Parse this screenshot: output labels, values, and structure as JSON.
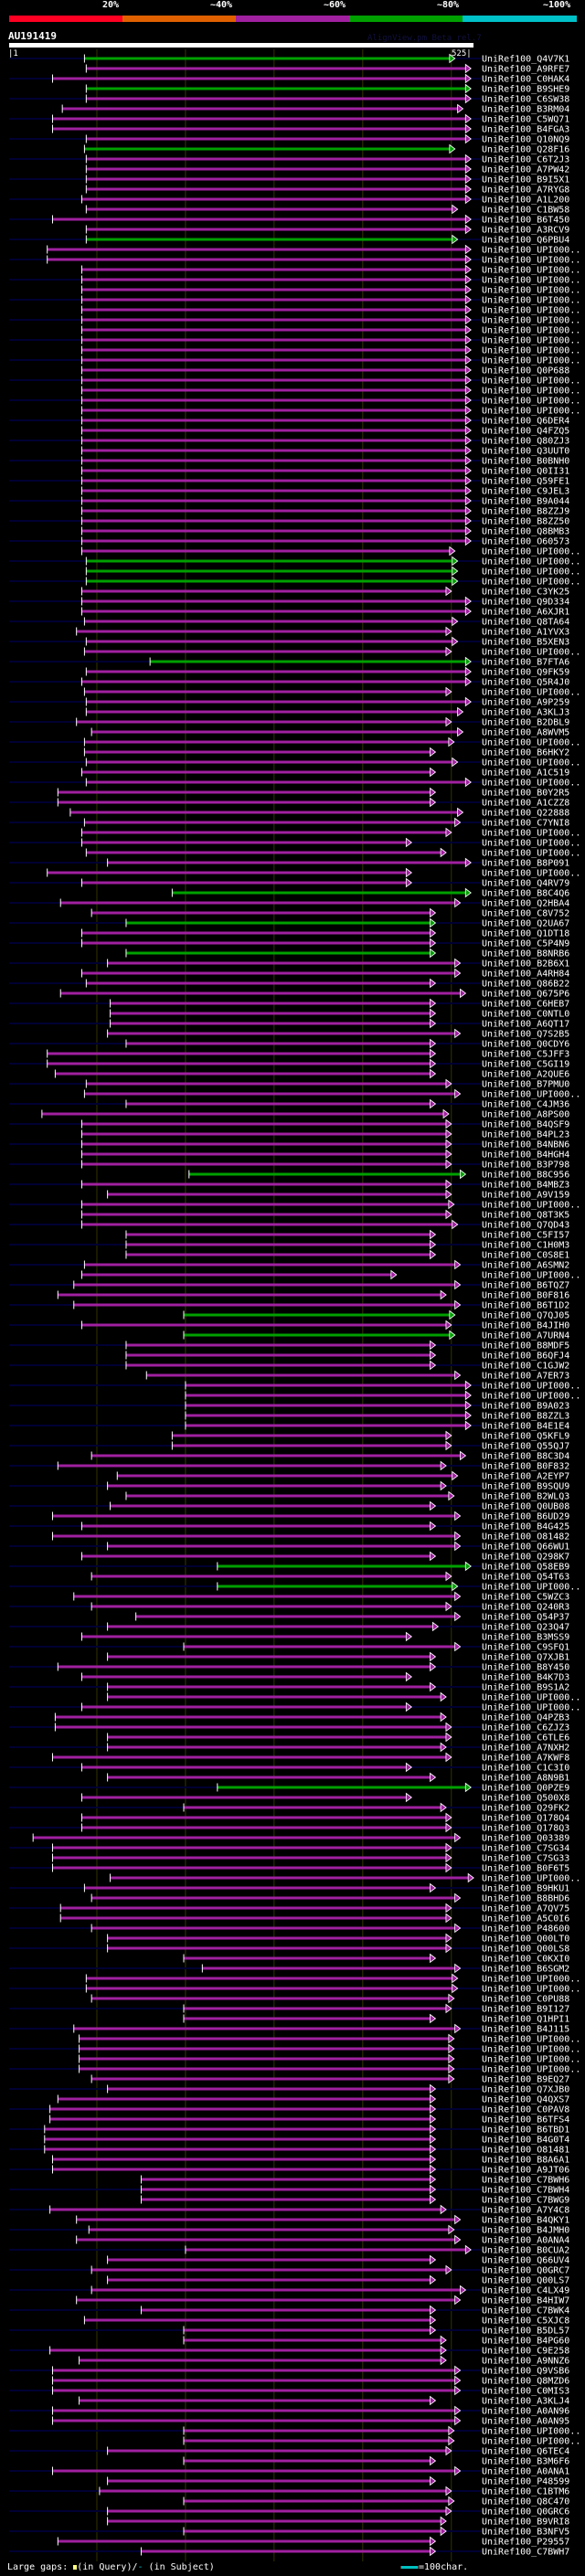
{
  "legend": {
    "labels": [
      "20%",
      "~40%",
      "~60%",
      "~80%",
      "~100%"
    ],
    "colors": [
      "#ff0022",
      "#e06000",
      "#a020a0",
      "#00a000",
      "#00c0c8"
    ]
  },
  "query": {
    "name": "AU191419",
    "tool": "AlignView.pm Beta rel.7",
    "start_label": "|1",
    "end_label": "525|",
    "length": 525
  },
  "colors": {
    "m": "#a020a0",
    "g": "#00a000",
    "stripe": "#000033",
    "grid": "#333300"
  },
  "grid_positions": [
    100,
    200,
    300,
    400,
    500
  ],
  "footer": {
    "gaps_label": "Large gaps:",
    "query_gap": "(in Query)/",
    "subject_gap_mark": "-",
    "subject_gap": " (in Subject)",
    "scale_label": "=100char."
  },
  "hits": [
    [
      "UniRef100_Q4V7K1",
      86,
      498,
      "g"
    ],
    [
      "UniRef100_A9RFE7",
      88,
      516,
      "m"
    ],
    [
      "UniRef100_C0HAK4",
      50,
      516,
      "m"
    ],
    [
      "UniRef100_B9SHE9",
      88,
      516,
      "g"
    ],
    [
      "UniRef100_C6SW38",
      88,
      516,
      "m"
    ],
    [
      "UniRef100_B3RM04",
      61,
      507,
      "m"
    ],
    [
      "UniRef100_C5WQ71",
      50,
      516,
      "m"
    ],
    [
      "UniRef100_B4FGA3",
      50,
      516,
      "m"
    ],
    [
      "UniRef100_Q10NQ9",
      88,
      516,
      "m"
    ],
    [
      "UniRef100_Q28F16",
      86,
      498,
      "g"
    ],
    [
      "UniRef100_C6T2J3",
      88,
      516,
      "m"
    ],
    [
      "UniRef100_A7PW42",
      88,
      516,
      "m"
    ],
    [
      "UniRef100_B9I5X1",
      88,
      516,
      "m"
    ],
    [
      "UniRef100_A7RYG8",
      88,
      516,
      "m"
    ],
    [
      "UniRef100_A1L200",
      83,
      516,
      "m"
    ],
    [
      "UniRef100_C1BW58",
      88,
      501,
      "m"
    ],
    [
      "UniRef100_B6T450",
      50,
      516,
      "m"
    ],
    [
      "UniRef100_A3RCV9",
      88,
      516,
      "m"
    ],
    [
      "UniRef100_Q6PBU4",
      88,
      501,
      "g"
    ],
    [
      "UniRef100_UPI000..",
      44,
      516,
      "m"
    ],
    [
      "UniRef100_UPI000..",
      44,
      516,
      "m"
    ],
    [
      "UniRef100_UPI000..",
      83,
      516,
      "m"
    ],
    [
      "UniRef100_UPI000..",
      83,
      516,
      "m"
    ],
    [
      "UniRef100_UPI000..",
      83,
      516,
      "m"
    ],
    [
      "UniRef100_UPI000..",
      83,
      516,
      "m"
    ],
    [
      "UniRef100_UPI000..",
      83,
      516,
      "m"
    ],
    [
      "UniRef100_UPI000..",
      83,
      516,
      "m"
    ],
    [
      "UniRef100_UPI000..",
      83,
      516,
      "m"
    ],
    [
      "UniRef100_UPI000..",
      83,
      516,
      "m"
    ],
    [
      "UniRef100_UPI000..",
      83,
      516,
      "m"
    ],
    [
      "UniRef100_UPI000..",
      83,
      516,
      "m"
    ],
    [
      "UniRef100_Q0P688",
      83,
      516,
      "m"
    ],
    [
      "UniRef100_UPI000..",
      83,
      516,
      "m"
    ],
    [
      "UniRef100_UPI000..",
      83,
      516,
      "m"
    ],
    [
      "UniRef100_UPI000..",
      83,
      516,
      "m"
    ],
    [
      "UniRef100_UPI000..",
      83,
      516,
      "m"
    ],
    [
      "UniRef100_Q6DER4",
      83,
      516,
      "m"
    ],
    [
      "UniRef100_Q4FZQ5",
      83,
      516,
      "m"
    ],
    [
      "UniRef100_Q80ZJ3",
      83,
      516,
      "m"
    ],
    [
      "UniRef100_Q3UUT0",
      83,
      516,
      "m"
    ],
    [
      "UniRef100_B0BNH0",
      83,
      516,
      "m"
    ],
    [
      "UniRef100_Q0II31",
      83,
      516,
      "m"
    ],
    [
      "UniRef100_Q59FE1",
      83,
      516,
      "m"
    ],
    [
      "UniRef100_C9JEL3",
      83,
      516,
      "m"
    ],
    [
      "UniRef100_B9A044",
      83,
      516,
      "m"
    ],
    [
      "UniRef100_B8ZZJ9",
      83,
      516,
      "m"
    ],
    [
      "UniRef100_B8ZZ50",
      83,
      516,
      "m"
    ],
    [
      "UniRef100_Q8BMB3",
      83,
      516,
      "m"
    ],
    [
      "UniRef100_O60573",
      83,
      516,
      "m"
    ],
    [
      "UniRef100_UPI000..",
      83,
      498,
      "m"
    ],
    [
      "UniRef100_UPI000..",
      88,
      501,
      "g"
    ],
    [
      "UniRef100_UPI000..",
      88,
      501,
      "g"
    ],
    [
      "UniRef100_UPI000..",
      88,
      501,
      "g"
    ],
    [
      "UniRef100_C3YK25",
      83,
      494,
      "m"
    ],
    [
      "UniRef100_Q9D334",
      83,
      516,
      "m"
    ],
    [
      "UniRef100_A6XJR1",
      83,
      516,
      "m"
    ],
    [
      "UniRef100_Q8TA64",
      86,
      501,
      "m"
    ],
    [
      "UniRef100_A1YVX3",
      77,
      494,
      "m"
    ],
    [
      "UniRef100_B5XEN3",
      88,
      501,
      "m"
    ],
    [
      "UniRef100_UPI000..",
      86,
      494,
      "m"
    ],
    [
      "UniRef100_B7FTA6",
      160,
      516,
      "g"
    ],
    [
      "UniRef100_Q9FK59",
      88,
      516,
      "m"
    ],
    [
      "UniRef100_Q5R4J0",
      83,
      516,
      "m"
    ],
    [
      "UniRef100_UPI000..",
      86,
      494,
      "m"
    ],
    [
      "UniRef100_A9P259",
      88,
      516,
      "m"
    ],
    [
      "UniRef100_A3KLJ3",
      88,
      507,
      "m"
    ],
    [
      "UniRef100_B2DBL9",
      77,
      494,
      "m"
    ],
    [
      "UniRef100_A8WVM5",
      94,
      507,
      "m"
    ],
    [
      "UniRef100_UPI000..",
      86,
      497,
      "m"
    ],
    [
      "UniRef100_B6HKY2",
      86,
      476,
      "m"
    ],
    [
      "UniRef100_UPI000..",
      88,
      501,
      "m"
    ],
    [
      "UniRef100_A1C519",
      83,
      476,
      "m"
    ],
    [
      "UniRef100_UPI000..",
      88,
      516,
      "m"
    ],
    [
      "UniRef100_B0Y2R5",
      56,
      476,
      "m"
    ],
    [
      "UniRef100_A1CZZ8",
      56,
      476,
      "m"
    ],
    [
      "UniRef100_Q22888",
      70,
      507,
      "m"
    ],
    [
      "UniRef100_C7YNI8",
      86,
      504,
      "m"
    ],
    [
      "UniRef100_UPI000..",
      83,
      494,
      "m"
    ],
    [
      "UniRef100_UPI000..",
      83,
      449,
      "m"
    ],
    [
      "UniRef100_UPI000..",
      88,
      488,
      "m"
    ],
    [
      "UniRef100_B8P091",
      112,
      516,
      "m"
    ],
    [
      "UniRef100_UPI000..",
      44,
      449,
      "m"
    ],
    [
      "UniRef100_Q4RV79",
      83,
      449,
      "m"
    ],
    [
      "UniRef100_B8C4Q6",
      185,
      516,
      "g"
    ],
    [
      "UniRef100_Q2HBA4",
      59,
      504,
      "m"
    ],
    [
      "UniRef100_C8V752",
      94,
      476,
      "m"
    ],
    [
      "UniRef100_Q2UA67",
      133,
      476,
      "g"
    ],
    [
      "UniRef100_Q1DT18",
      83,
      476,
      "m"
    ],
    [
      "UniRef100_C5P4N9",
      83,
      476,
      "m"
    ],
    [
      "UniRef100_B8NRB6",
      133,
      476,
      "g"
    ],
    [
      "UniRef100_B2B6X1",
      112,
      504,
      "m"
    ],
    [
      "UniRef100_A4RH84",
      83,
      504,
      "m"
    ],
    [
      "UniRef100_Q86B22",
      88,
      476,
      "m"
    ],
    [
      "UniRef100_Q675P6",
      59,
      510,
      "m"
    ],
    [
      "UniRef100_C6HEB7",
      115,
      476,
      "m"
    ],
    [
      "UniRef100_C0NTL0",
      115,
      476,
      "m"
    ],
    [
      "UniRef100_A6QT17",
      115,
      476,
      "m"
    ],
    [
      "UniRef100_Q7S2B5",
      112,
      504,
      "m"
    ],
    [
      "UniRef100_Q0CDY6",
      133,
      476,
      "m"
    ],
    [
      "UniRef100_C5JFF3",
      44,
      476,
      "m"
    ],
    [
      "UniRef100_C5GI19",
      44,
      476,
      "m"
    ],
    [
      "UniRef100_A2QUE6",
      53,
      476,
      "m"
    ],
    [
      "UniRef100_B7PMU0",
      88,
      494,
      "m"
    ],
    [
      "UniRef100_UPI000..",
      86,
      504,
      "m"
    ],
    [
      "UniRef100_C4JM36",
      133,
      476,
      "m"
    ],
    [
      "UniRef100_A8PS00",
      38,
      491,
      "m"
    ],
    [
      "UniRef100_B4QSF9",
      83,
      494,
      "m"
    ],
    [
      "UniRef100_B4PL23",
      83,
      494,
      "m"
    ],
    [
      "UniRef100_B4NBN6",
      83,
      494,
      "m"
    ],
    [
      "UniRef100_B4HGH4",
      83,
      494,
      "m"
    ],
    [
      "UniRef100_B3P798",
      83,
      494,
      "m"
    ],
    [
      "UniRef100_B8C956",
      204,
      510,
      "g"
    ],
    [
      "UniRef100_B4MBZ3",
      83,
      494,
      "m"
    ],
    [
      "UniRef100_A9V159",
      112,
      494,
      "m"
    ],
    [
      "UniRef100_UPI000..",
      83,
      497,
      "m"
    ],
    [
      "UniRef100_Q8T3K5",
      83,
      494,
      "m"
    ],
    [
      "UniRef100_Q7QD43",
      83,
      501,
      "m"
    ],
    [
      "UniRef100_C5FI57",
      133,
      476,
      "m"
    ],
    [
      "UniRef100_C1H0M3",
      133,
      476,
      "m"
    ],
    [
      "UniRef100_C0S8E1",
      133,
      476,
      "m"
    ],
    [
      "UniRef100_A6SMN2",
      86,
      504,
      "m"
    ],
    [
      "UniRef100_UPI000..",
      83,
      432,
      "m"
    ],
    [
      "UniRef100_B6TQZ7",
      74,
      504,
      "m"
    ],
    [
      "UniRef100_B0F816",
      56,
      488,
      "m"
    ],
    [
      "UniRef100_B6T1D2",
      74,
      504,
      "m"
    ],
    [
      "UniRef100_Q7QJ05",
      198,
      498,
      "g"
    ],
    [
      "UniRef100_B4JIH0",
      83,
      494,
      "m"
    ],
    [
      "UniRef100_A7URN4",
      198,
      498,
      "g"
    ],
    [
      "UniRef100_B8MDF5",
      133,
      476,
      "m"
    ],
    [
      "UniRef100_B6QFJ4",
      133,
      476,
      "m"
    ],
    [
      "UniRef100_C1GJW2",
      133,
      476,
      "m"
    ],
    [
      "UniRef100_A7ER73",
      156,
      504,
      "m"
    ],
    [
      "UniRef100_UPI000..",
      200,
      516,
      "m"
    ],
    [
      "UniRef100_UPI000..",
      200,
      516,
      "m"
    ],
    [
      "UniRef100_B9A023",
      200,
      516,
      "m"
    ],
    [
      "UniRef100_B8ZZL3",
      200,
      516,
      "m"
    ],
    [
      "UniRef100_B4E1E4",
      200,
      516,
      "m"
    ],
    [
      "UniRef100_Q5KFL9",
      185,
      494,
      "m"
    ],
    [
      "UniRef100_Q55QJ7",
      185,
      494,
      "m"
    ],
    [
      "UniRef100_B8C3D4",
      94,
      510,
      "m"
    ],
    [
      "UniRef100_B0F832",
      56,
      488,
      "m"
    ],
    [
      "UniRef100_A2EYP7",
      123,
      501,
      "m"
    ],
    [
      "UniRef100_B9SQU9",
      112,
      488,
      "m"
    ],
    [
      "UniRef100_B2WLQ3",
      133,
      497,
      "m"
    ],
    [
      "UniRef100_Q0UB08",
      115,
      476,
      "m"
    ],
    [
      "UniRef100_B6UD29",
      50,
      504,
      "m"
    ],
    [
      "UniRef100_B4G425",
      83,
      476,
      "m"
    ],
    [
      "UniRef100_O81482",
      50,
      504,
      "m"
    ],
    [
      "UniRef100_Q66WU1",
      112,
      504,
      "m"
    ],
    [
      "UniRef100_Q298K7",
      83,
      476,
      "m"
    ],
    [
      "UniRef100_Q58EB9",
      236,
      516,
      "g"
    ],
    [
      "UniRef100_Q54T63",
      94,
      494,
      "m"
    ],
    [
      "UniRef100_UPI000..",
      236,
      501,
      "g"
    ],
    [
      "UniRef100_C5WZC3",
      74,
      504,
      "m"
    ],
    [
      "UniRef100_Q240R3",
      94,
      494,
      "m"
    ],
    [
      "UniRef100_Q54P37",
      144,
      504,
      "m"
    ],
    [
      "UniRef100_Q23Q47",
      112,
      479,
      "m"
    ],
    [
      "UniRef100_B3MSS9",
      83,
      449,
      "m"
    ],
    [
      "UniRef100_C9SFQ1",
      198,
      504,
      "m"
    ],
    [
      "UniRef100_Q7XJB1",
      112,
      476,
      "m"
    ],
    [
      "UniRef100_B8Y450",
      56,
      476,
      "m"
    ],
    [
      "UniRef100_B4K7D3",
      83,
      449,
      "m"
    ],
    [
      "UniRef100_B9S1A2",
      112,
      476,
      "m"
    ],
    [
      "UniRef100_UPI000..",
      112,
      488,
      "m"
    ],
    [
      "UniRef100_UPI000..",
      83,
      449,
      "m"
    ],
    [
      "UniRef100_Q4PZB3",
      53,
      488,
      "m"
    ],
    [
      "UniRef100_C6ZJZ3",
      53,
      494,
      "m"
    ],
    [
      "UniRef100_C6TLE6",
      112,
      494,
      "m"
    ],
    [
      "UniRef100_A7NXH2",
      112,
      488,
      "m"
    ],
    [
      "UniRef100_A7KWF8",
      50,
      494,
      "m"
    ],
    [
      "UniRef100_C1C3I0",
      83,
      449,
      "m"
    ],
    [
      "UniRef100_A8N9B1",
      112,
      476,
      "m"
    ],
    [
      "UniRef100_Q0PZE9",
      236,
      516,
      "g"
    ],
    [
      "UniRef100_Q500X8",
      83,
      449,
      "m"
    ],
    [
      "UniRef100_Q29FK2",
      198,
      488,
      "m"
    ],
    [
      "UniRef100_Q178Q4",
      83,
      494,
      "m"
    ],
    [
      "UniRef100_Q178Q3",
      83,
      494,
      "m"
    ],
    [
      "UniRef100_Q03389",
      28,
      504,
      "m"
    ],
    [
      "UniRef100_C7SG34",
      50,
      494,
      "m"
    ],
    [
      "UniRef100_C7SG33",
      50,
      494,
      "m"
    ],
    [
      "UniRef100_B0F6T5",
      50,
      494,
      "m"
    ],
    [
      "UniRef100_UPI000..",
      115,
      519,
      "m"
    ],
    [
      "UniRef100_B9HKU1",
      86,
      476,
      "m"
    ],
    [
      "UniRef100_B8BHD6",
      94,
      504,
      "m"
    ],
    [
      "UniRef100_A7QV75",
      59,
      494,
      "m"
    ],
    [
      "UniRef100_A5C0I6",
      59,
      494,
      "m"
    ],
    [
      "UniRef100_P48600",
      94,
      504,
      "m"
    ],
    [
      "UniRef100_Q00LT0",
      112,
      494,
      "m"
    ],
    [
      "UniRef100_Q00LS8",
      112,
      494,
      "m"
    ],
    [
      "UniRef100_C0KXI0",
      198,
      476,
      "m"
    ],
    [
      "UniRef100_B6SGM2",
      219,
      504,
      "m"
    ],
    [
      "UniRef100_UPI000..",
      88,
      501,
      "m"
    ],
    [
      "UniRef100_UPI000..",
      88,
      501,
      "m"
    ],
    [
      "UniRef100_C0PU88",
      94,
      497,
      "m"
    ],
    [
      "UniRef100_B9I127",
      198,
      494,
      "m"
    ],
    [
      "UniRef100_Q1HPI1",
      198,
      476,
      "m"
    ],
    [
      "UniRef100_B4J115",
      74,
      504,
      "m"
    ],
    [
      "UniRef100_UPI000..",
      80,
      497,
      "m"
    ],
    [
      "UniRef100_UPI000..",
      80,
      497,
      "m"
    ],
    [
      "UniRef100_UPI000..",
      80,
      497,
      "m"
    ],
    [
      "UniRef100_UPI000..",
      80,
      497,
      "m"
    ],
    [
      "UniRef100_B9EQ27",
      94,
      497,
      "m"
    ],
    [
      "UniRef100_Q7XJB0",
      112,
      476,
      "m"
    ],
    [
      "UniRef100_Q4QXS7",
      56,
      476,
      "m"
    ],
    [
      "UniRef100_C0PAV8",
      47,
      476,
      "m"
    ],
    [
      "UniRef100_B6TFS4",
      47,
      476,
      "m"
    ],
    [
      "UniRef100_B6TBD1",
      41,
      476,
      "m"
    ],
    [
      "UniRef100_B4G0T4",
      41,
      476,
      "m"
    ],
    [
      "UniRef100_O81481",
      41,
      476,
      "m"
    ],
    [
      "UniRef100_B8A6A1",
      50,
      476,
      "m"
    ],
    [
      "UniRef100_A9JT06",
      50,
      476,
      "m"
    ],
    [
      "UniRef100_C7BWH6",
      150,
      476,
      "m"
    ],
    [
      "UniRef100_C7BWH4",
      150,
      476,
      "m"
    ],
    [
      "UniRef100_C7BWG9",
      150,
      476,
      "m"
    ],
    [
      "UniRef100_A7Y4C8",
      47,
      488,
      "m"
    ],
    [
      "UniRef100_B4QKY1",
      77,
      504,
      "m"
    ],
    [
      "UniRef100_B4JMH0",
      91,
      497,
      "m"
    ],
    [
      "UniRef100_A0ANA4",
      77,
      504,
      "m"
    ],
    [
      "UniRef100_B0CUA2",
      200,
      516,
      "m"
    ],
    [
      "UniRef100_Q66UV4",
      112,
      476,
      "m"
    ],
    [
      "UniRef100_Q0GRC7",
      94,
      494,
      "m"
    ],
    [
      "UniRef100_Q00LS7",
      112,
      476,
      "m"
    ],
    [
      "UniRef100_C4LX49",
      94,
      510,
      "m"
    ],
    [
      "UniRef100_B4HIW7",
      77,
      504,
      "m"
    ],
    [
      "UniRef100_C7BWK4",
      150,
      476,
      "m"
    ],
    [
      "UniRef100_C5XJC8",
      86,
      476,
      "m"
    ],
    [
      "UniRef100_B5DL57",
      198,
      476,
      "m"
    ],
    [
      "UniRef100_B4PG60",
      198,
      488,
      "m"
    ],
    [
      "UniRef100_C9E258",
      47,
      488,
      "m"
    ],
    [
      "UniRef100_A9NNZ6",
      80,
      488,
      "m"
    ],
    [
      "UniRef100_Q9VSB6",
      50,
      504,
      "m"
    ],
    [
      "UniRef100_Q8MZD6",
      50,
      504,
      "m"
    ],
    [
      "UniRef100_C0MIS3",
      50,
      504,
      "m"
    ],
    [
      "UniRef100_A3KLJ4",
      80,
      476,
      "m"
    ],
    [
      "UniRef100_A0AN96",
      50,
      504,
      "m"
    ],
    [
      "UniRef100_A0AN95",
      50,
      504,
      "m"
    ],
    [
      "UniRef100_UPI000..",
      198,
      497,
      "m"
    ],
    [
      "UniRef100_UPI000..",
      198,
      497,
      "m"
    ],
    [
      "UniRef100_Q6TEC4",
      112,
      494,
      "m"
    ],
    [
      "UniRef100_B3M6F6",
      198,
      476,
      "m"
    ],
    [
      "UniRef100_A0ANA1",
      50,
      504,
      "m"
    ],
    [
      "UniRef100_P48599",
      112,
      476,
      "m"
    ],
    [
      "UniRef100_C1BTM6",
      103,
      494,
      "m"
    ],
    [
      "UniRef100_Q8C470",
      198,
      497,
      "m"
    ],
    [
      "UniRef100_Q0GRC6",
      112,
      494,
      "m"
    ],
    [
      "UniRef100_B9VRI8",
      112,
      488,
      "m"
    ],
    [
      "UniRef100_B3NFV5",
      198,
      488,
      "m"
    ],
    [
      "UniRef100_P29557",
      56,
      476,
      "m"
    ],
    [
      "UniRef100_C7BWH7",
      150,
      476,
      "m"
    ]
  ]
}
